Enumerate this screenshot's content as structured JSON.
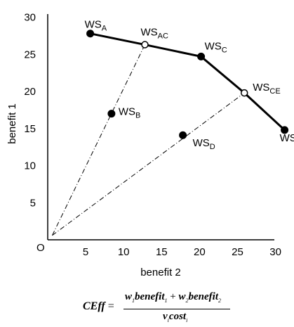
{
  "chart_data": {
    "type": "scatter",
    "xlabel": "benefit 2",
    "ylabel": "benefit 1",
    "origin_label": "O",
    "x_ticks": [
      5,
      10,
      15,
      20,
      25,
      30
    ],
    "y_ticks": [
      5,
      10,
      15,
      20,
      25,
      30
    ],
    "xlim": [
      0,
      34
    ],
    "ylim": [
      0,
      30
    ],
    "points": [
      {
        "base": "WS",
        "sub": "A",
        "x": 5.6,
        "y": 27.8,
        "marker": "filled"
      },
      {
        "base": "WS",
        "sub": "AC",
        "x": 12.8,
        "y": 26.3,
        "marker": "open"
      },
      {
        "base": "WS",
        "sub": "C",
        "x": 20.2,
        "y": 24.7,
        "marker": "filled"
      },
      {
        "base": "WS",
        "sub": "CE",
        "x": 25.9,
        "y": 19.8,
        "marker": "open"
      },
      {
        "base": "WS",
        "sub": "E",
        "x": 31.2,
        "y": 14.8,
        "marker": "filled"
      },
      {
        "base": "WS",
        "sub": "B",
        "x": 8.4,
        "y": 17.0,
        "marker": "filled"
      },
      {
        "base": "WS",
        "sub": "D",
        "x": 17.8,
        "y": 14.1,
        "marker": "filled"
      }
    ],
    "frontier": [
      "A",
      "AC",
      "C",
      "CE",
      "E"
    ],
    "rays": [
      {
        "from": [
          0.6,
          0.6
        ],
        "to": "AC"
      },
      {
        "from": [
          0.6,
          0.6
        ],
        "to": "CE"
      }
    ]
  },
  "formula": {
    "lhs": "CEff",
    "eq": "=",
    "w": "w",
    "benefit": "benefit",
    "plus": "+",
    "v": "v",
    "cost": "cost",
    "sub1": "1",
    "sub2": "2",
    "subi": "i"
  }
}
